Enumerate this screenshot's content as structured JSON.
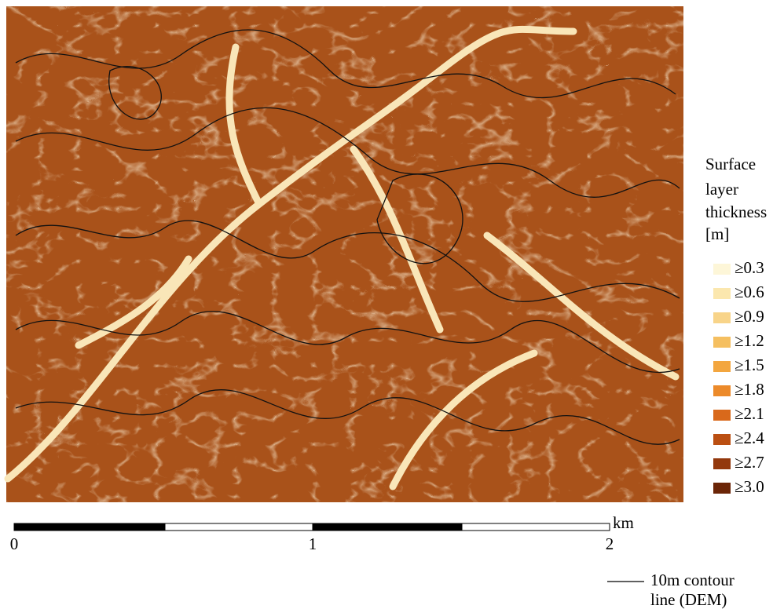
{
  "legend": {
    "title_lines": [
      "Surface",
      "layer",
      "thickness",
      "[m]"
    ],
    "items": [
      {
        "label": "≥0.3",
        "color": "#fdf6d8"
      },
      {
        "label": "≥0.6",
        "color": "#fbe7ae"
      },
      {
        "label": "≥0.9",
        "color": "#f8d489"
      },
      {
        "label": "≥1.2",
        "color": "#f5bf60"
      },
      {
        "label": "≥1.5",
        "color": "#f3a63f"
      },
      {
        "label": "≥1.8",
        "color": "#ec8a2a"
      },
      {
        "label": "≥2.1",
        "color": "#d9691b"
      },
      {
        "label": "≥2.4",
        "color": "#bb4f12"
      },
      {
        "label": "≥2.7",
        "color": "#93380c"
      },
      {
        "label": "≥3.0",
        "color": "#6b2507"
      }
    ]
  },
  "scale_bar": {
    "labels": [
      "0",
      "1",
      "2"
    ],
    "unit": "km"
  },
  "contour_legend": {
    "lines": [
      "10m contour",
      "line (DEM)"
    ]
  }
}
